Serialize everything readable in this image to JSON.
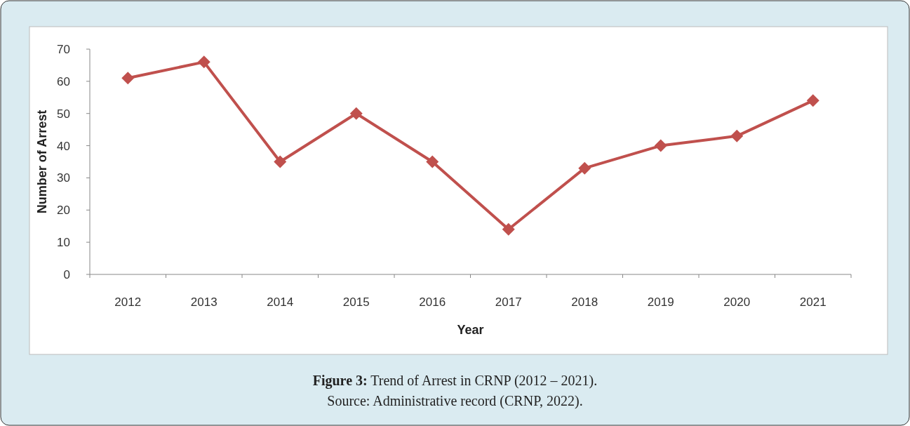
{
  "chart_data": {
    "type": "line",
    "title": "Figure 3: Trend of Arrest in CRNP (2012 – 2021).",
    "annotations": [
      "Source: Administrative record (CRNP, 2022)."
    ],
    "xlabel": "Year",
    "ylabel": "Number of Arrest",
    "categories": [
      "2012",
      "2013",
      "2014",
      "2015",
      "2016",
      "2017",
      "2018",
      "2019",
      "2020",
      "2021"
    ],
    "series": [
      {
        "color": "#c0504d",
        "values": [
          61,
          66,
          35,
          50,
          35,
          14,
          33,
          40,
          43,
          54
        ]
      }
    ],
    "ylim": [
      0,
      70
    ],
    "yticks": [
      0,
      10,
      20,
      30,
      40,
      50,
      60,
      70
    ],
    "grid": false,
    "marker": "diamond",
    "line_style": "solid"
  }
}
